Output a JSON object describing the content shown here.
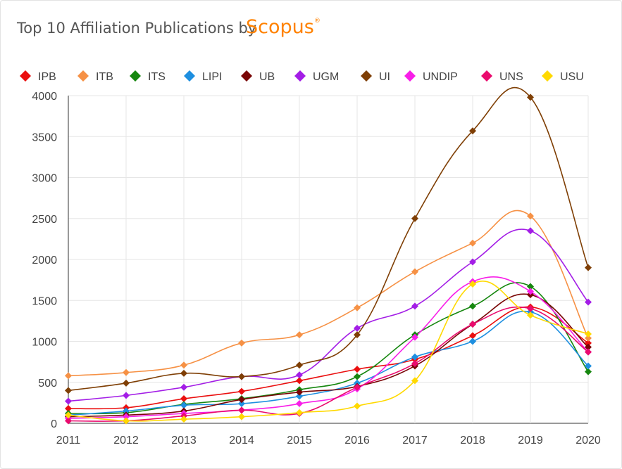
{
  "header": {
    "title": "Top 10 Affiliation Publications by",
    "brand": "Scopus",
    "brand_mark": "®"
  },
  "chart_data": {
    "type": "line",
    "title": "Top 10 Affiliation Publications by Scopus",
    "xlabel": "",
    "ylabel": "",
    "ylim": [
      0,
      4000
    ],
    "yticks": [
      0,
      500,
      1000,
      1500,
      2000,
      2500,
      3000,
      3500,
      4000
    ],
    "grid": true,
    "legend": "top",
    "marker": "diamond",
    "x": [
      2011,
      2012,
      2013,
      2014,
      2015,
      2016,
      2017,
      2018,
      2019,
      2020
    ],
    "series": [
      {
        "name": "IPB",
        "color": "#ea0f0f",
        "values": [
          180,
          190,
          300,
          390,
          520,
          660,
          780,
          1070,
          1420,
          980
        ]
      },
      {
        "name": "ITB",
        "color": "#f69145",
        "values": [
          580,
          620,
          710,
          980,
          1080,
          1410,
          1850,
          2200,
          2530,
          1040
        ]
      },
      {
        "name": "ITS",
        "color": "#16870f",
        "values": [
          120,
          130,
          230,
          300,
          410,
          570,
          1080,
          1430,
          1670,
          630
        ]
      },
      {
        "name": "LIPI",
        "color": "#1e8fe0",
        "values": [
          100,
          150,
          220,
          240,
          330,
          490,
          810,
          1000,
          1360,
          700
        ]
      },
      {
        "name": "UB",
        "color": "#7a0606",
        "values": [
          80,
          100,
          150,
          290,
          380,
          450,
          700,
          1210,
          1570,
          930
        ]
      },
      {
        "name": "UGM",
        "color": "#a31de6",
        "values": [
          270,
          340,
          440,
          570,
          590,
          1160,
          1430,
          1970,
          2350,
          1480
        ]
      },
      {
        "name": "UI",
        "color": "#7f3f05",
        "values": [
          400,
          490,
          610,
          570,
          710,
          1080,
          2500,
          3570,
          3980,
          1900
        ]
      },
      {
        "name": "UNDIP",
        "color": "#f81ee8",
        "values": [
          60,
          80,
          120,
          160,
          240,
          420,
          1050,
          1730,
          1610,
          870
        ]
      },
      {
        "name": "UNS",
        "color": "#ea0b6e",
        "values": [
          30,
          30,
          90,
          160,
          120,
          440,
          730,
          1210,
          1400,
          870
        ]
      },
      {
        "name": "USU",
        "color": "#ffd900",
        "values": [
          100,
          30,
          50,
          80,
          130,
          210,
          520,
          1700,
          1320,
          1090
        ]
      }
    ]
  }
}
